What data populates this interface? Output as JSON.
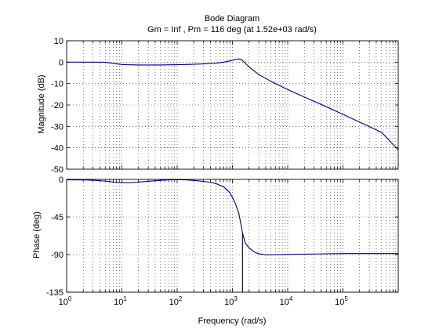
{
  "chart_data": {
    "type": "line",
    "title": "Bode Diagram",
    "subtitle": "Gm = Inf ,  Pm = 116 deg (at 1.52e+03 rad/s)",
    "xlabel": "Frequency  (rad/s)",
    "x_scale": "log",
    "xlim": [
      1,
      1000000
    ],
    "x_tick_labels": [
      {
        "base": "10",
        "exp": "0"
      },
      {
        "base": "10",
        "exp": "1"
      },
      {
        "base": "10",
        "exp": "2"
      },
      {
        "base": "10",
        "exp": "3"
      },
      {
        "base": "10",
        "exp": "4"
      },
      {
        "base": "10",
        "exp": "5"
      }
    ],
    "grid": true,
    "line_color": "#00007f",
    "subplots": [
      {
        "name": "magnitude",
        "ylabel": "Magnitude (dB)",
        "ylim": [
          -50,
          10
        ],
        "y_ticks": [
          10,
          0,
          -10,
          -20,
          -30,
          -40,
          -50
        ],
        "series": [
          {
            "x": [
              1,
              3,
              5,
              6,
              8,
              10,
              12,
              20,
              50,
              100,
              200,
              300,
              500,
              700,
              900,
              1100,
              1300,
              1450,
              1600,
              2000,
              3000,
              5000,
              10000,
              20000,
              50000,
              100000,
              200000,
              500000,
              1000000
            ],
            "y": [
              0,
              0,
              -0.05,
              -0.3,
              -0.8,
              -1.1,
              -1.2,
              -1.3,
              -1.3,
              -1.2,
              -1.0,
              -0.8,
              -0.5,
              0,
              0.6,
              1.2,
              1.5,
              1.2,
              0.2,
              -2.3,
              -5.8,
              -9.0,
              -12.8,
              -16.3,
              -20.8,
              -24.4,
              -28.0,
              -32.8,
              -41
            ]
          }
        ]
      },
      {
        "name": "phase",
        "ylabel": "Phase (deg)",
        "ylim": [
          -135,
          0
        ],
        "y_ticks": [
          0,
          -45,
          -90,
          -135
        ],
        "series": [
          {
            "x": [
              1,
              2,
              3,
              5,
              7,
              10,
              15,
              20,
              40,
              60,
              80,
              100,
              150,
              200,
              300,
              400,
              500,
              700,
              900,
              1100,
              1300,
              1520,
              1700,
              2000,
              2500,
              3000,
              4000,
              6000,
              10000,
              30000,
              100000,
              1000000
            ],
            "y": [
              -0.5,
              -0.6,
              -1.0,
              -2.0,
              -3.2,
              -4.0,
              -3.8,
              -3.2,
              -1.6,
              -0.8,
              -0.4,
              -0.3,
              -0.6,
              -1.2,
              -2.4,
              -3.5,
              -5.0,
              -9.0,
              -16.0,
              -27.0,
              -40.0,
              -64.0,
              -76.0,
              -82.0,
              -87.0,
              -89.0,
              -90.3,
              -90.2,
              -89.8,
              -89.3,
              -88.8,
              -88.8
            ]
          }
        ],
        "marker": {
          "x": 1520,
          "y_top": -64,
          "y_bottom": -135
        }
      }
    ]
  }
}
